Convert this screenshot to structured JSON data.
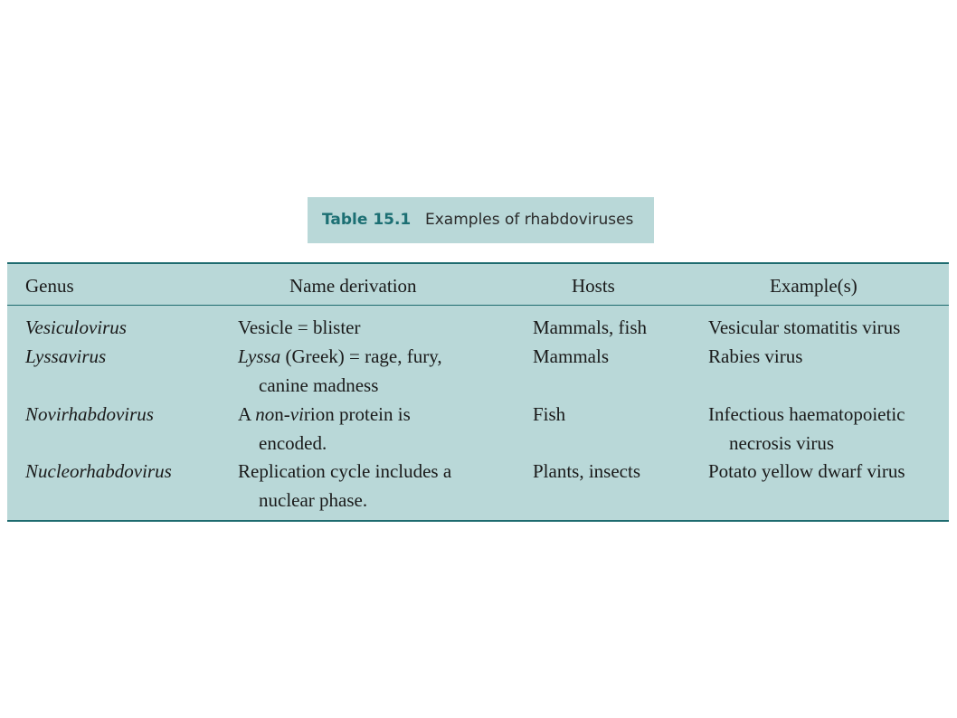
{
  "caption": {
    "label": "Table 15.1",
    "title": "Examples of rhabdoviruses"
  },
  "headers": {
    "genus": "Genus",
    "derivation": "Name derivation",
    "hosts": "Hosts",
    "examples": "Example(s)"
  },
  "rows": [
    {
      "genus": "Vesiculovirus",
      "derivation": [
        "Vesicle = blister"
      ],
      "hosts": "Mammals, fish",
      "examples": [
        "Vesicular stomatitis virus"
      ]
    },
    {
      "genus": "Lyssavirus",
      "derivation_parts": {
        "italic": "Lyssa",
        "rest": " (Greek) = rage, fury,"
      },
      "derivation": [
        "Lyssa (Greek) = rage, fury,",
        "canine madness"
      ],
      "hosts": "Mammals",
      "examples": [
        "Rabies virus"
      ]
    },
    {
      "genus": "Novirhabdovirus",
      "derivation_parts": {
        "a": "A ",
        "no": "no",
        "n": "n-",
        "vi": "vi",
        "rest": "rion protein is"
      },
      "derivation": [
        "A non-virion protein is",
        "encoded."
      ],
      "hosts": "Fish",
      "examples": [
        "Infectious haematopoietic",
        "necrosis virus"
      ]
    },
    {
      "genus": "Nucleorhabdovirus",
      "derivation": [
        "Replication cycle includes a",
        "nuclear phase."
      ],
      "hosts": "Plants, insects",
      "examples": [
        "Potato yellow dwarf virus"
      ]
    }
  ]
}
